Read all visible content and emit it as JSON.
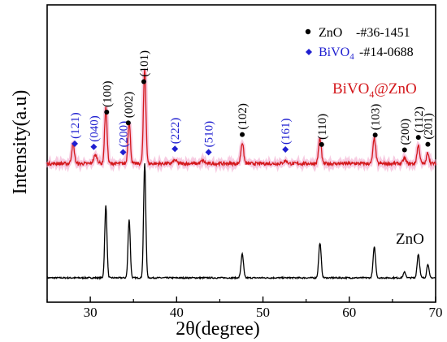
{
  "chart_data": {
    "type": "line",
    "xlabel": "2θ(degree)",
    "ylabel": "Intensity(a.u)",
    "xlim": [
      25,
      70
    ],
    "xticks": [
      30,
      40,
      50,
      60,
      70
    ],
    "y_ticks_shown": false,
    "legend": {
      "placement": "top-right",
      "entries": [
        {
          "marker": "circle",
          "color": "#000000",
          "name": "ZnO",
          "ref": "-#36-1451"
        },
        {
          "marker": "diamond",
          "color": "#1f1fd0",
          "name_base": "BiVO",
          "name_sub": "4",
          "ref": "-#14-0688"
        }
      ]
    },
    "series": [
      {
        "name": "ZnO",
        "label_text": "ZnO",
        "color": "#000000",
        "baseline": 0,
        "noise": 0.025,
        "peaks": [
          {
            "x": 31.8,
            "h": 2.6,
            "w": 0.18
          },
          {
            "x": 34.5,
            "h": 2.1,
            "w": 0.18
          },
          {
            "x": 36.3,
            "h": 4.1,
            "w": 0.18
          },
          {
            "x": 47.6,
            "h": 0.85,
            "w": 0.2
          },
          {
            "x": 56.6,
            "h": 1.25,
            "w": 0.2
          },
          {
            "x": 62.9,
            "h": 1.1,
            "w": 0.2
          },
          {
            "x": 66.4,
            "h": 0.2,
            "w": 0.2
          },
          {
            "x": 68.0,
            "h": 0.85,
            "w": 0.2
          },
          {
            "x": 69.1,
            "h": 0.5,
            "w": 0.18
          }
        ]
      },
      {
        "name": "BiVO4@ZnO",
        "label_base": "BiVO",
        "label_sub": "4",
        "label_rest": "@ZnO",
        "color": "#d4181c",
        "halo_color": "#f0a0c8",
        "baseline": 4.1,
        "noise": 0.06,
        "peaks": [
          {
            "x": 28.0,
            "h": 0.7,
            "w": 0.22
          },
          {
            "x": 30.6,
            "h": 0.3,
            "w": 0.3
          },
          {
            "x": 31.8,
            "h": 2.0,
            "w": 0.2
          },
          {
            "x": 34.5,
            "h": 1.5,
            "w": 0.2
          },
          {
            "x": 36.3,
            "h": 3.4,
            "w": 0.2
          },
          {
            "x": 39.8,
            "h": 0.12,
            "w": 0.3
          },
          {
            "x": 43.0,
            "h": 0.1,
            "w": 0.3
          },
          {
            "x": 47.6,
            "h": 0.75,
            "w": 0.22
          },
          {
            "x": 52.6,
            "h": 0.1,
            "w": 0.3
          },
          {
            "x": 56.6,
            "h": 0.9,
            "w": 0.22
          },
          {
            "x": 62.9,
            "h": 0.9,
            "w": 0.22
          },
          {
            "x": 66.4,
            "h": 0.2,
            "w": 0.22
          },
          {
            "x": 68.0,
            "h": 0.65,
            "w": 0.22
          },
          {
            "x": 69.1,
            "h": 0.4,
            "w": 0.2
          }
        ]
      }
    ],
    "annotations": {
      "bivo4": [
        {
          "x": 28.2,
          "label": "(121)"
        },
        {
          "x": 30.4,
          "label": "(040)"
        },
        {
          "x": 33.8,
          "label": "(200)"
        },
        {
          "x": 39.8,
          "label": "(222)"
        },
        {
          "x": 43.7,
          "label": "(510)"
        },
        {
          "x": 52.6,
          "label": "(161)"
        }
      ],
      "zno": [
        {
          "x": 31.9,
          "label": "(100)"
        },
        {
          "x": 34.4,
          "label": "(002)"
        },
        {
          "x": 36.2,
          "label": "(101)"
        },
        {
          "x": 47.6,
          "label": "(102)"
        },
        {
          "x": 56.8,
          "label": "(110)"
        },
        {
          "x": 63.0,
          "label": "(103)"
        },
        {
          "x": 66.4,
          "label": "(200)"
        },
        {
          "x": 68.0,
          "label": "(112)"
        },
        {
          "x": 69.1,
          "label": "(201)"
        }
      ]
    },
    "colors": {
      "zno_marker": "#000000",
      "bivo4_marker": "#1f1fd0",
      "bivo4_label": "#1f1fd0",
      "composite_label": "#d4181c"
    }
  }
}
